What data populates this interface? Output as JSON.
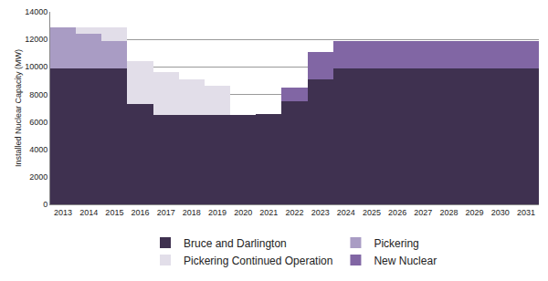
{
  "chart_data": {
    "type": "bar",
    "stacked": true,
    "y_label": "Installed Nuclear Capacity (MW)",
    "categories": [
      "2013",
      "2014",
      "2015",
      "2016",
      "2017",
      "2018",
      "2019",
      "2020",
      "2021",
      "2022",
      "2023",
      "2024",
      "2025",
      "2026",
      "2027",
      "2028",
      "2029",
      "2030",
      "2031"
    ],
    "series": [
      {
        "name": "Bruce and Darlington",
        "color": "#3f3150",
        "values": [
          9900,
          9900,
          9900,
          7300,
          6500,
          6500,
          6500,
          6500,
          6600,
          7500,
          9100,
          9900,
          9900,
          9900,
          9900,
          9900,
          9900,
          9900,
          9900
        ]
      },
      {
        "name": "Pickering",
        "color": "#a99cc4",
        "values": [
          3000,
          2500,
          2000,
          0,
          0,
          0,
          0,
          0,
          0,
          0,
          0,
          0,
          0,
          0,
          0,
          0,
          0,
          0,
          0
        ]
      },
      {
        "name": "Pickering Continued Operation",
        "color": "#e2dee9",
        "values": [
          0,
          500,
          1000,
          3100,
          3100,
          2600,
          2100,
          0,
          0,
          0,
          0,
          0,
          0,
          0,
          0,
          0,
          0,
          0,
          0
        ]
      },
      {
        "name": "New Nuclear",
        "color": "#8166a4",
        "values": [
          0,
          0,
          0,
          0,
          0,
          0,
          0,
          0,
          0,
          1000,
          2000,
          2000,
          2000,
          2000,
          2000,
          2000,
          2000,
          2000,
          2000
        ]
      }
    ],
    "ylim": [
      0,
      14000
    ],
    "yticks": [
      0,
      2000,
      4000,
      6000,
      8000,
      10000,
      12000,
      14000
    ],
    "grid": true,
    "legend": "bottom"
  }
}
